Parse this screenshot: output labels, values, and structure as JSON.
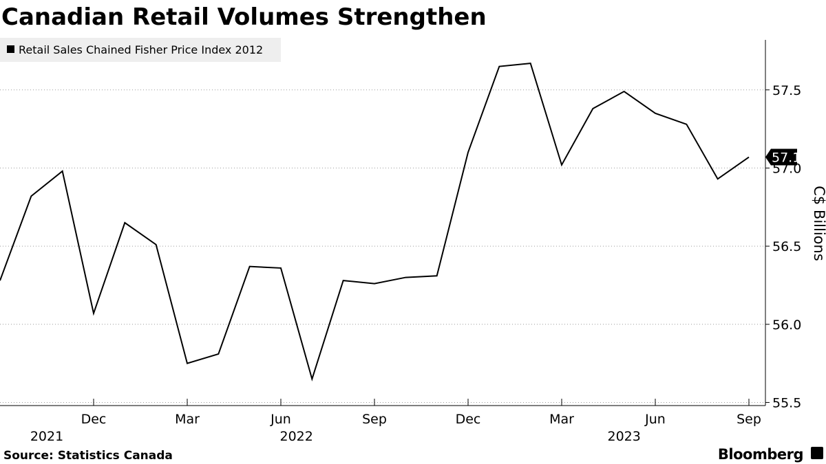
{
  "chart_data": {
    "type": "line",
    "title": "Canadian Retail Volumes Strengthen",
    "source": "Source: Statistics Canada",
    "brand": "Bloomberg",
    "y_label": "C$ Billions",
    "x": [
      "2021-09",
      "2021-10",
      "2021-11",
      "2021-12",
      "2022-01",
      "2022-02",
      "2022-03",
      "2022-04",
      "2022-05",
      "2022-06",
      "2022-07",
      "2022-08",
      "2022-09",
      "2022-10",
      "2022-11",
      "2022-12",
      "2023-01",
      "2023-02",
      "2023-03",
      "2023-04",
      "2023-05",
      "2023-06",
      "2023-07",
      "2023-08",
      "2023-09"
    ],
    "series": [
      {
        "name": "Retail Sales Chained Fisher Price Index 2012",
        "color": "#000000",
        "values": [
          56.28,
          56.82,
          56.98,
          56.07,
          56.65,
          56.51,
          55.75,
          55.81,
          56.37,
          56.36,
          55.65,
          56.28,
          56.26,
          56.3,
          56.31,
          57.1,
          57.65,
          57.67,
          57.02,
          57.38,
          57.49,
          57.35,
          57.28,
          56.93,
          57.07
        ],
        "value_labels": [
          null,
          null,
          null,
          null,
          null,
          null,
          null,
          null,
          null,
          null,
          null,
          null,
          null,
          null,
          null,
          null,
          null,
          null,
          null,
          null,
          null,
          null,
          null,
          null,
          "57.1"
        ]
      }
    ],
    "xticks": [
      {
        "value": "2021-12",
        "label": "Dec"
      },
      {
        "value": "2022-03",
        "label": "Mar"
      },
      {
        "value": "2022-06",
        "label": "Jun"
      },
      {
        "value": "2022-09",
        "label": "Sep"
      },
      {
        "value": "2022-12",
        "label": "Dec"
      },
      {
        "value": "2023-03",
        "label": "Mar"
      },
      {
        "value": "2023-06",
        "label": "Jun"
      },
      {
        "value": "2023-09",
        "label": "Sep"
      }
    ],
    "year_ticks": [
      2021,
      2022,
      2023
    ],
    "ylim": [
      55.48,
      57.82
    ],
    "yticks": [
      55.5,
      {
        "value": 56,
        "label": "56.0"
      },
      56.5,
      {
        "value": 57,
        "label": "57.0"
      },
      57.5
    ],
    "grid": true
  }
}
